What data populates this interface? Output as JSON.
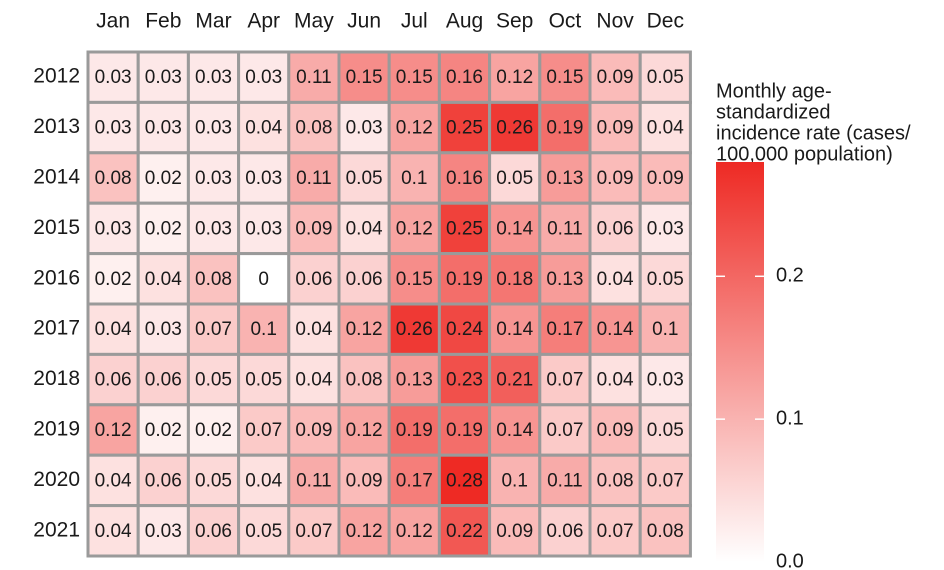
{
  "chart_data": {
    "type": "heatmap",
    "x_categories": [
      "Jan",
      "Feb",
      "Mar",
      "Apr",
      "May",
      "Jun",
      "Jul",
      "Aug",
      "Sep",
      "Oct",
      "Nov",
      "Dec"
    ],
    "y_categories": [
      "2012",
      "2013",
      "2014",
      "2015",
      "2016",
      "2017",
      "2018",
      "2019",
      "2020",
      "2021"
    ],
    "values": [
      [
        0.03,
        0.03,
        0.03,
        0.03,
        0.11,
        0.15,
        0.15,
        0.16,
        0.12,
        0.15,
        0.09,
        0.05
      ],
      [
        0.03,
        0.03,
        0.03,
        0.04,
        0.08,
        0.03,
        0.12,
        0.25,
        0.26,
        0.19,
        0.09,
        0.04
      ],
      [
        0.08,
        0.02,
        0.03,
        0.03,
        0.11,
        0.05,
        0.1,
        0.16,
        0.05,
        0.13,
        0.09,
        0.09
      ],
      [
        0.03,
        0.02,
        0.03,
        0.03,
        0.09,
        0.04,
        0.12,
        0.25,
        0.14,
        0.11,
        0.06,
        0.03
      ],
      [
        0.02,
        0.04,
        0.08,
        0,
        0.06,
        0.06,
        0.15,
        0.19,
        0.18,
        0.13,
        0.04,
        0.05
      ],
      [
        0.04,
        0.03,
        0.07,
        0.1,
        0.04,
        0.12,
        0.26,
        0.24,
        0.14,
        0.17,
        0.14,
        0.1
      ],
      [
        0.06,
        0.06,
        0.05,
        0.05,
        0.04,
        0.08,
        0.13,
        0.23,
        0.21,
        0.07,
        0.04,
        0.03
      ],
      [
        0.12,
        0.02,
        0.02,
        0.07,
        0.09,
        0.12,
        0.19,
        0.19,
        0.14,
        0.07,
        0.09,
        0.05
      ],
      [
        0.04,
        0.06,
        0.05,
        0.04,
        0.11,
        0.09,
        0.17,
        0.28,
        0.1,
        0.11,
        0.08,
        0.07
      ],
      [
        0.04,
        0.03,
        0.06,
        0.05,
        0.07,
        0.12,
        0.12,
        0.22,
        0.09,
        0.06,
        0.07,
        0.08
      ]
    ],
    "colorbar": {
      "title_lines": [
        "Monthly age-",
        "standardized",
        "incidence rate (cases/",
        "100,000 population)"
      ],
      "lim": [
        0,
        0.28
      ],
      "ticks": [
        {
          "value": 0,
          "label": "0.0"
        },
        0.1,
        0.2
      ],
      "colors": [
        "#ffffff",
        "#ee2a24"
      ]
    }
  }
}
